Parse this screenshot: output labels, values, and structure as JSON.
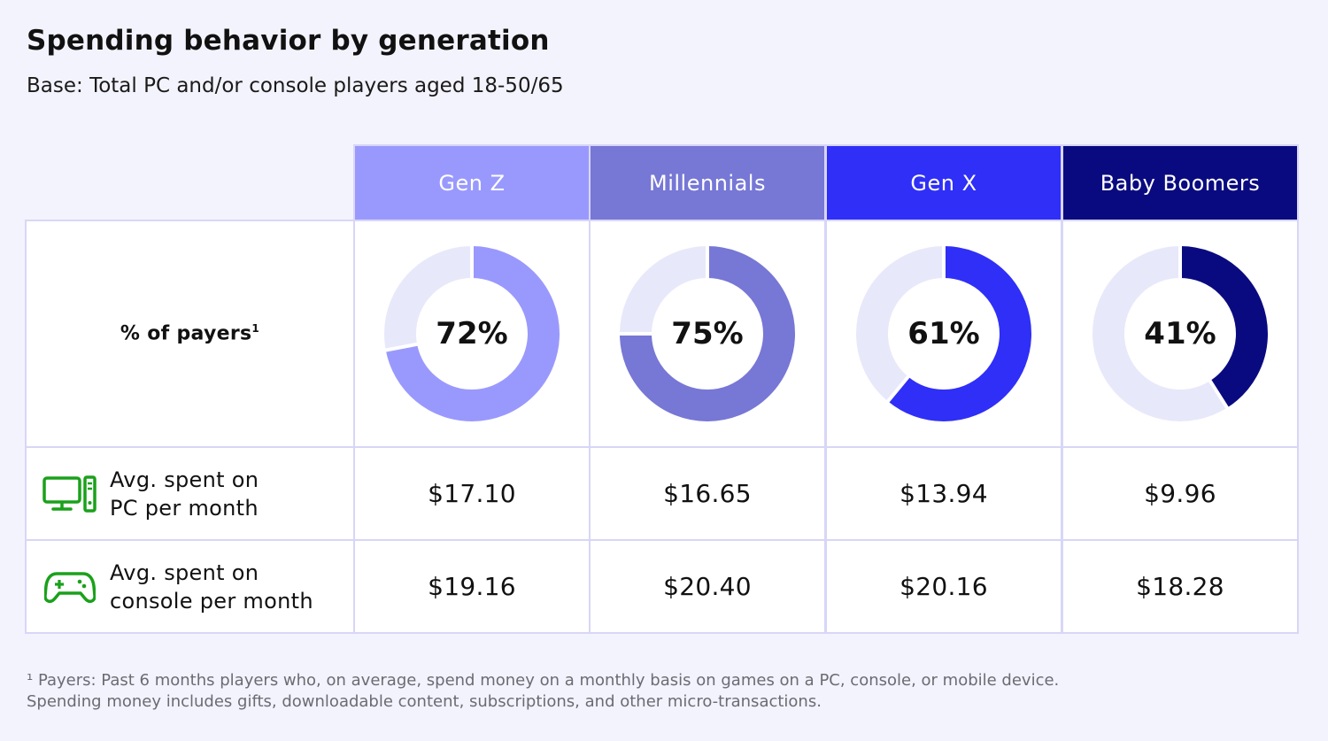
{
  "title": "Spending behavior by generation",
  "subtitle": "Base: Total PC and/or console players aged 18-50/65",
  "table": {
    "payers_label": "% of payers",
    "payers_sup": "1",
    "pc_row": {
      "line1": "Avg. spent on",
      "line2": "PC per month",
      "icon": "desktop-pc-icon"
    },
    "console_row": {
      "line1": "Avg. spent on",
      "line2": "console per month",
      "icon": "gamepad-icon"
    }
  },
  "footnote": {
    "line1": "¹ Payers: Past 6 months players who, on average, spend money on a monthly basis on games on a PC, console, or mobile device.",
    "line2": "Spending money includes gifts, downloadable content, subscriptions, and other micro-transactions."
  },
  "colors": {
    "track": "#e8e8fb",
    "icon": "#1aa11a",
    "border": "#d8d6f7"
  },
  "chart_data": {
    "type": "table",
    "columns": [
      {
        "name": "Gen Z",
        "payers_pct": 72,
        "payers_label": "72%",
        "pc": "$17.10",
        "console": "$19.16",
        "color": "#9999fd"
      },
      {
        "name": "Millennials",
        "payers_pct": 75,
        "payers_label": "75%",
        "pc": "$16.65",
        "console": "$20.40",
        "color": "#7777d6"
      },
      {
        "name": "Gen X",
        "payers_pct": 61,
        "payers_label": "61%",
        "pc": "$13.94",
        "console": "$20.16",
        "color": "#2f2ff7"
      },
      {
        "name": "Baby Boomers",
        "payers_pct": 41,
        "payers_label": "41%",
        "pc": "$9.96",
        "console": "$18.28",
        "color": "#0a0a80"
      }
    ],
    "rows": [
      "% of payers",
      "Avg. spent on PC per month",
      "Avg. spent on console per month"
    ]
  }
}
